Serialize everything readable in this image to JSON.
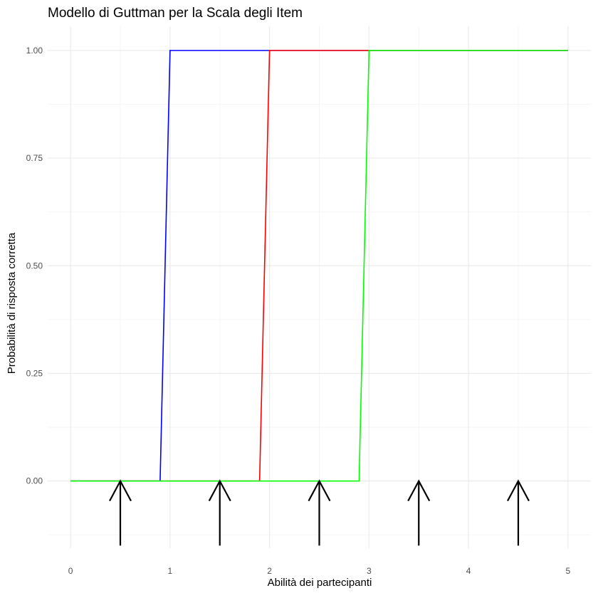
{
  "chart_data": {
    "type": "line",
    "title": "Modello di Guttman per la Scala degli Item",
    "xlabel": "Abilità dei partecipanti",
    "ylabel": "Probabilità di risposta corretta",
    "xlim": [
      -0.23,
      5.23
    ],
    "ylim": [
      -0.156,
      1.056
    ],
    "x_ticks": [
      0,
      1,
      2,
      3,
      4,
      5
    ],
    "x_tick_labels": [
      "0",
      "1",
      "2",
      "3",
      "4",
      "5"
    ],
    "y_ticks": [
      0,
      0.25,
      0.5,
      0.75,
      1.0
    ],
    "y_tick_labels": [
      "0.00",
      "0.25",
      "0.50",
      "0.75",
      "1.00"
    ],
    "grid": true,
    "series": [
      {
        "color": "#0000ff",
        "x": [
          0,
          0.9,
          1,
          5
        ],
        "y": [
          0,
          0,
          1,
          1
        ]
      },
      {
        "color": "#ff0000",
        "x": [
          0,
          1.9,
          2,
          5
        ],
        "y": [
          0,
          0,
          1,
          1
        ]
      },
      {
        "color": "#00ff00",
        "x": [
          0,
          2.9,
          3,
          5
        ],
        "y": [
          0,
          0,
          1,
          1
        ]
      }
    ],
    "arrows": [
      {
        "x": 0.5,
        "y_start": -0.15,
        "y_end": 0
      },
      {
        "x": 1.5,
        "y_start": -0.15,
        "y_end": 0
      },
      {
        "x": 2.5,
        "y_start": -0.15,
        "y_end": 0
      },
      {
        "x": 3.5,
        "y_start": -0.15,
        "y_end": 0
      },
      {
        "x": 4.5,
        "y_start": -0.15,
        "y_end": 0
      }
    ]
  }
}
